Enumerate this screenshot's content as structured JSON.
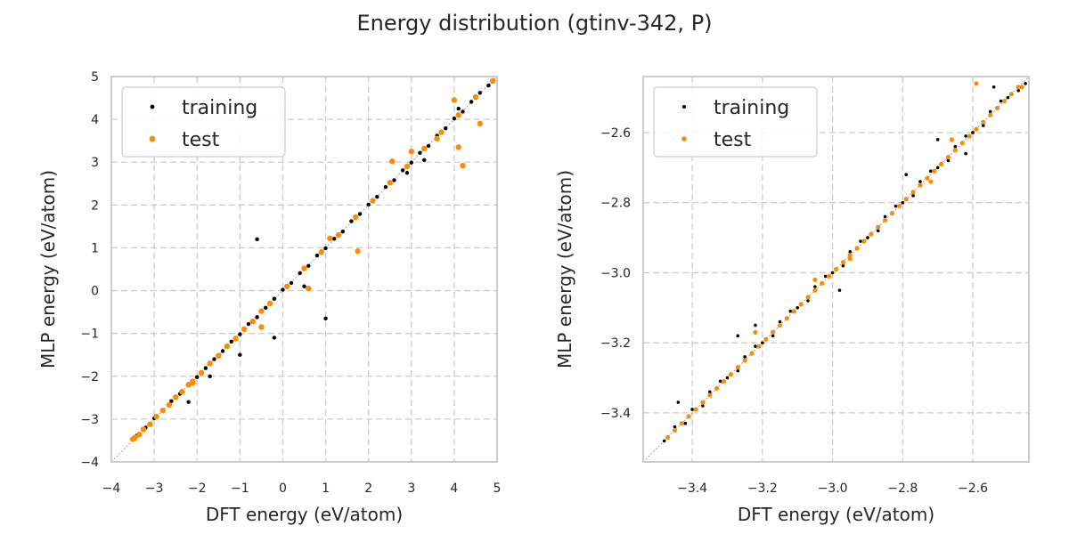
{
  "figure": {
    "suptitle": "Energy distribution (gtinv-342, P)"
  },
  "chart_data": [
    {
      "type": "scatter",
      "xlabel": "DFT energy (eV/atom)",
      "ylabel": "MLP energy (eV/atom)",
      "xlim": [
        -4,
        5
      ],
      "ylim": [
        -4,
        5
      ],
      "xticks": [
        "−4",
        "−3",
        "−2",
        "−1",
        "0",
        "1",
        "2",
        "3",
        "4",
        "5"
      ],
      "yticks": [
        "−4",
        "−3",
        "−2",
        "−1",
        "0",
        "1",
        "2",
        "3",
        "4",
        "5"
      ],
      "grid": true,
      "legend_position": "top-left",
      "diagonal": true,
      "series": [
        {
          "name": "training",
          "color": "#000000",
          "points": [
            [
              -3.5,
              -3.48
            ],
            [
              -3.4,
              -3.38
            ],
            [
              -3.2,
              -3.2
            ],
            [
              -3.0,
              -2.98
            ],
            [
              -2.8,
              -2.81
            ],
            [
              -2.6,
              -2.58
            ],
            [
              -2.4,
              -2.41
            ],
            [
              -2.2,
              -2.18
            ],
            [
              -2.0,
              -2.02
            ],
            [
              -1.8,
              -1.81
            ],
            [
              -1.6,
              -1.6
            ],
            [
              -1.4,
              -1.41
            ],
            [
              -1.2,
              -1.19
            ],
            [
              -1.0,
              -1.02
            ],
            [
              -0.8,
              -0.78
            ],
            [
              -0.6,
              -0.62
            ],
            [
              -0.4,
              -0.4
            ],
            [
              -0.2,
              -0.19
            ],
            [
              0.0,
              0.02
            ],
            [
              0.2,
              0.18
            ],
            [
              0.4,
              0.41
            ],
            [
              0.6,
              0.58
            ],
            [
              0.8,
              0.82
            ],
            [
              1.0,
              0.99
            ],
            [
              1.2,
              1.21
            ],
            [
              1.4,
              1.38
            ],
            [
              1.6,
              1.62
            ],
            [
              1.8,
              1.79
            ],
            [
              2.0,
              2.01
            ],
            [
              2.2,
              2.19
            ],
            [
              2.4,
              2.42
            ],
            [
              2.6,
              2.58
            ],
            [
              2.8,
              2.81
            ],
            [
              3.0,
              2.99
            ],
            [
              3.2,
              3.22
            ],
            [
              3.4,
              3.38
            ],
            [
              3.6,
              3.62
            ],
            [
              3.8,
              3.79
            ],
            [
              4.0,
              4.02
            ],
            [
              4.2,
              4.18
            ],
            [
              4.4,
              4.41
            ],
            [
              4.6,
              4.62
            ],
            [
              4.8,
              4.79
            ],
            [
              4.9,
              4.88
            ],
            [
              -0.6,
              1.2
            ],
            [
              1.0,
              -0.65
            ],
            [
              0.5,
              0.1
            ],
            [
              -0.2,
              -1.1
            ],
            [
              -1.7,
              -2.0
            ],
            [
              -2.2,
              -2.6
            ],
            [
              -1.0,
              -1.5
            ],
            [
              2.9,
              2.75
            ],
            [
              3.3,
              3.05
            ],
            [
              4.1,
              4.25
            ]
          ]
        },
        {
          "name": "test",
          "color": "#ff8c00",
          "points": [
            [
              -3.5,
              -3.47
            ],
            [
              -3.45,
              -3.43
            ],
            [
              -3.35,
              -3.36
            ],
            [
              -3.25,
              -3.24
            ],
            [
              -3.1,
              -3.12
            ],
            [
              -2.95,
              -2.94
            ],
            [
              -2.8,
              -2.8
            ],
            [
              -2.65,
              -2.67
            ],
            [
              -2.5,
              -2.49
            ],
            [
              -2.35,
              -2.36
            ],
            [
              -2.2,
              -2.2
            ],
            [
              -2.1,
              -2.12
            ],
            [
              -1.9,
              -1.92
            ],
            [
              -1.7,
              -1.7
            ],
            [
              -1.5,
              -1.52
            ],
            [
              -1.3,
              -1.3
            ],
            [
              -1.1,
              -1.12
            ],
            [
              -0.9,
              -0.9
            ],
            [
              -0.7,
              -0.72
            ],
            [
              -0.5,
              -0.48
            ],
            [
              -0.3,
              -0.3
            ],
            [
              0.1,
              0.1
            ],
            [
              0.5,
              0.52
            ],
            [
              0.9,
              0.9
            ],
            [
              1.3,
              1.3
            ],
            [
              1.7,
              1.72
            ],
            [
              2.1,
              2.1
            ],
            [
              2.5,
              2.52
            ],
            [
              2.9,
              2.9
            ],
            [
              3.3,
              3.32
            ],
            [
              3.7,
              3.7
            ],
            [
              4.1,
              4.1
            ],
            [
              4.5,
              4.52
            ],
            [
              4.9,
              4.9
            ],
            [
              4.0,
              4.45
            ],
            [
              4.2,
              2.92
            ],
            [
              4.6,
              3.9
            ],
            [
              4.1,
              3.35
            ],
            [
              1.75,
              0.92
            ],
            [
              0.6,
              0.05
            ],
            [
              -2.1,
              -2.15
            ],
            [
              2.55,
              3.02
            ],
            [
              3.6,
              3.55
            ],
            [
              -0.5,
              -0.85
            ],
            [
              1.1,
              1.22
            ],
            [
              3.0,
              3.25
            ]
          ]
        }
      ]
    },
    {
      "type": "scatter",
      "xlabel": "DFT energy (eV/atom)",
      "ylabel": "MLP energy (eV/atom)",
      "xlim": [
        -3.54,
        -2.44
      ],
      "ylim": [
        -3.54,
        -2.44
      ],
      "xticks": [
        "−3.4",
        "−3.2",
        "−3.0",
        "−2.8",
        "−2.6"
      ],
      "yticks": [
        "−3.4",
        "−3.2",
        "−3.0",
        "−2.8",
        "−2.6"
      ],
      "grid": true,
      "legend_position": "top-left",
      "diagonal": true,
      "series": [
        {
          "name": "training",
          "color": "#000000",
          "points": [
            [
              -3.48,
              -3.48
            ],
            [
              -3.45,
              -3.44
            ],
            [
              -3.42,
              -3.43
            ],
            [
              -3.4,
              -3.39
            ],
            [
              -3.37,
              -3.38
            ],
            [
              -3.35,
              -3.34
            ],
            [
              -3.32,
              -3.31
            ],
            [
              -3.3,
              -3.3
            ],
            [
              -3.27,
              -3.28
            ],
            [
              -3.25,
              -3.24
            ],
            [
              -3.22,
              -3.21
            ],
            [
              -3.2,
              -3.2
            ],
            [
              -3.17,
              -3.18
            ],
            [
              -3.15,
              -3.14
            ],
            [
              -3.12,
              -3.11
            ],
            [
              -3.1,
              -3.1
            ],
            [
              -3.07,
              -3.08
            ],
            [
              -3.05,
              -3.04
            ],
            [
              -3.02,
              -3.01
            ],
            [
              -3.0,
              -3.0
            ],
            [
              -2.97,
              -2.98
            ],
            [
              -2.95,
              -2.94
            ],
            [
              -2.92,
              -2.91
            ],
            [
              -2.9,
              -2.9
            ],
            [
              -2.87,
              -2.88
            ],
            [
              -2.85,
              -2.84
            ],
            [
              -2.82,
              -2.81
            ],
            [
              -2.8,
              -2.8
            ],
            [
              -2.77,
              -2.78
            ],
            [
              -2.75,
              -2.74
            ],
            [
              -2.72,
              -2.71
            ],
            [
              -2.7,
              -2.7
            ],
            [
              -2.67,
              -2.68
            ],
            [
              -2.65,
              -2.64
            ],
            [
              -2.62,
              -2.61
            ],
            [
              -2.6,
              -2.6
            ],
            [
              -2.57,
              -2.58
            ],
            [
              -2.55,
              -2.54
            ],
            [
              -2.52,
              -2.51
            ],
            [
              -2.5,
              -2.5
            ],
            [
              -2.47,
              -2.48
            ],
            [
              -3.44,
              -3.37
            ],
            [
              -3.27,
              -3.18
            ],
            [
              -3.22,
              -3.15
            ],
            [
              -2.98,
              -3.05
            ],
            [
              -2.79,
              -2.72
            ],
            [
              -2.7,
              -2.62
            ],
            [
              -2.62,
              -2.66
            ],
            [
              -2.54,
              -2.47
            ],
            [
              -2.45,
              -2.46
            ]
          ]
        },
        {
          "name": "test",
          "color": "#ff8c00",
          "points": [
            [
              -3.47,
              -3.47
            ],
            [
              -3.45,
              -3.45
            ],
            [
              -3.43,
              -3.43
            ],
            [
              -3.41,
              -3.41
            ],
            [
              -3.39,
              -3.39
            ],
            [
              -3.37,
              -3.37
            ],
            [
              -3.35,
              -3.35
            ],
            [
              -3.33,
              -3.33
            ],
            [
              -3.31,
              -3.31
            ],
            [
              -3.29,
              -3.29
            ],
            [
              -3.27,
              -3.27
            ],
            [
              -3.25,
              -3.25
            ],
            [
              -3.23,
              -3.23
            ],
            [
              -3.21,
              -3.21
            ],
            [
              -3.19,
              -3.19
            ],
            [
              -3.17,
              -3.17
            ],
            [
              -3.15,
              -3.15
            ],
            [
              -3.13,
              -3.13
            ],
            [
              -3.11,
              -3.11
            ],
            [
              -3.09,
              -3.09
            ],
            [
              -3.07,
              -3.07
            ],
            [
              -3.05,
              -3.05
            ],
            [
              -3.03,
              -3.03
            ],
            [
              -3.01,
              -3.01
            ],
            [
              -2.99,
              -2.99
            ],
            [
              -2.97,
              -2.97
            ],
            [
              -2.95,
              -2.95
            ],
            [
              -2.93,
              -2.93
            ],
            [
              -2.91,
              -2.91
            ],
            [
              -2.89,
              -2.89
            ],
            [
              -2.87,
              -2.87
            ],
            [
              -2.85,
              -2.85
            ],
            [
              -2.83,
              -2.83
            ],
            [
              -2.81,
              -2.81
            ],
            [
              -2.79,
              -2.79
            ],
            [
              -2.77,
              -2.77
            ],
            [
              -2.75,
              -2.75
            ],
            [
              -2.73,
              -2.73
            ],
            [
              -2.71,
              -2.71
            ],
            [
              -2.69,
              -2.69
            ],
            [
              -2.67,
              -2.67
            ],
            [
              -2.65,
              -2.65
            ],
            [
              -2.63,
              -2.63
            ],
            [
              -2.61,
              -2.61
            ],
            [
              -2.59,
              -2.59
            ],
            [
              -2.57,
              -2.57
            ],
            [
              -2.55,
              -2.55
            ],
            [
              -2.53,
              -2.53
            ],
            [
              -2.51,
              -2.51
            ],
            [
              -2.49,
              -2.49
            ],
            [
              -2.47,
              -2.47
            ],
            [
              -2.59,
              -2.46
            ],
            [
              -2.46,
              -2.47
            ],
            [
              -3.22,
              -3.17
            ],
            [
              -2.95,
              -2.96
            ],
            [
              -2.72,
              -2.74
            ],
            [
              -3.05,
              -3.02
            ],
            [
              -2.66,
              -2.62
            ]
          ]
        }
      ]
    }
  ]
}
